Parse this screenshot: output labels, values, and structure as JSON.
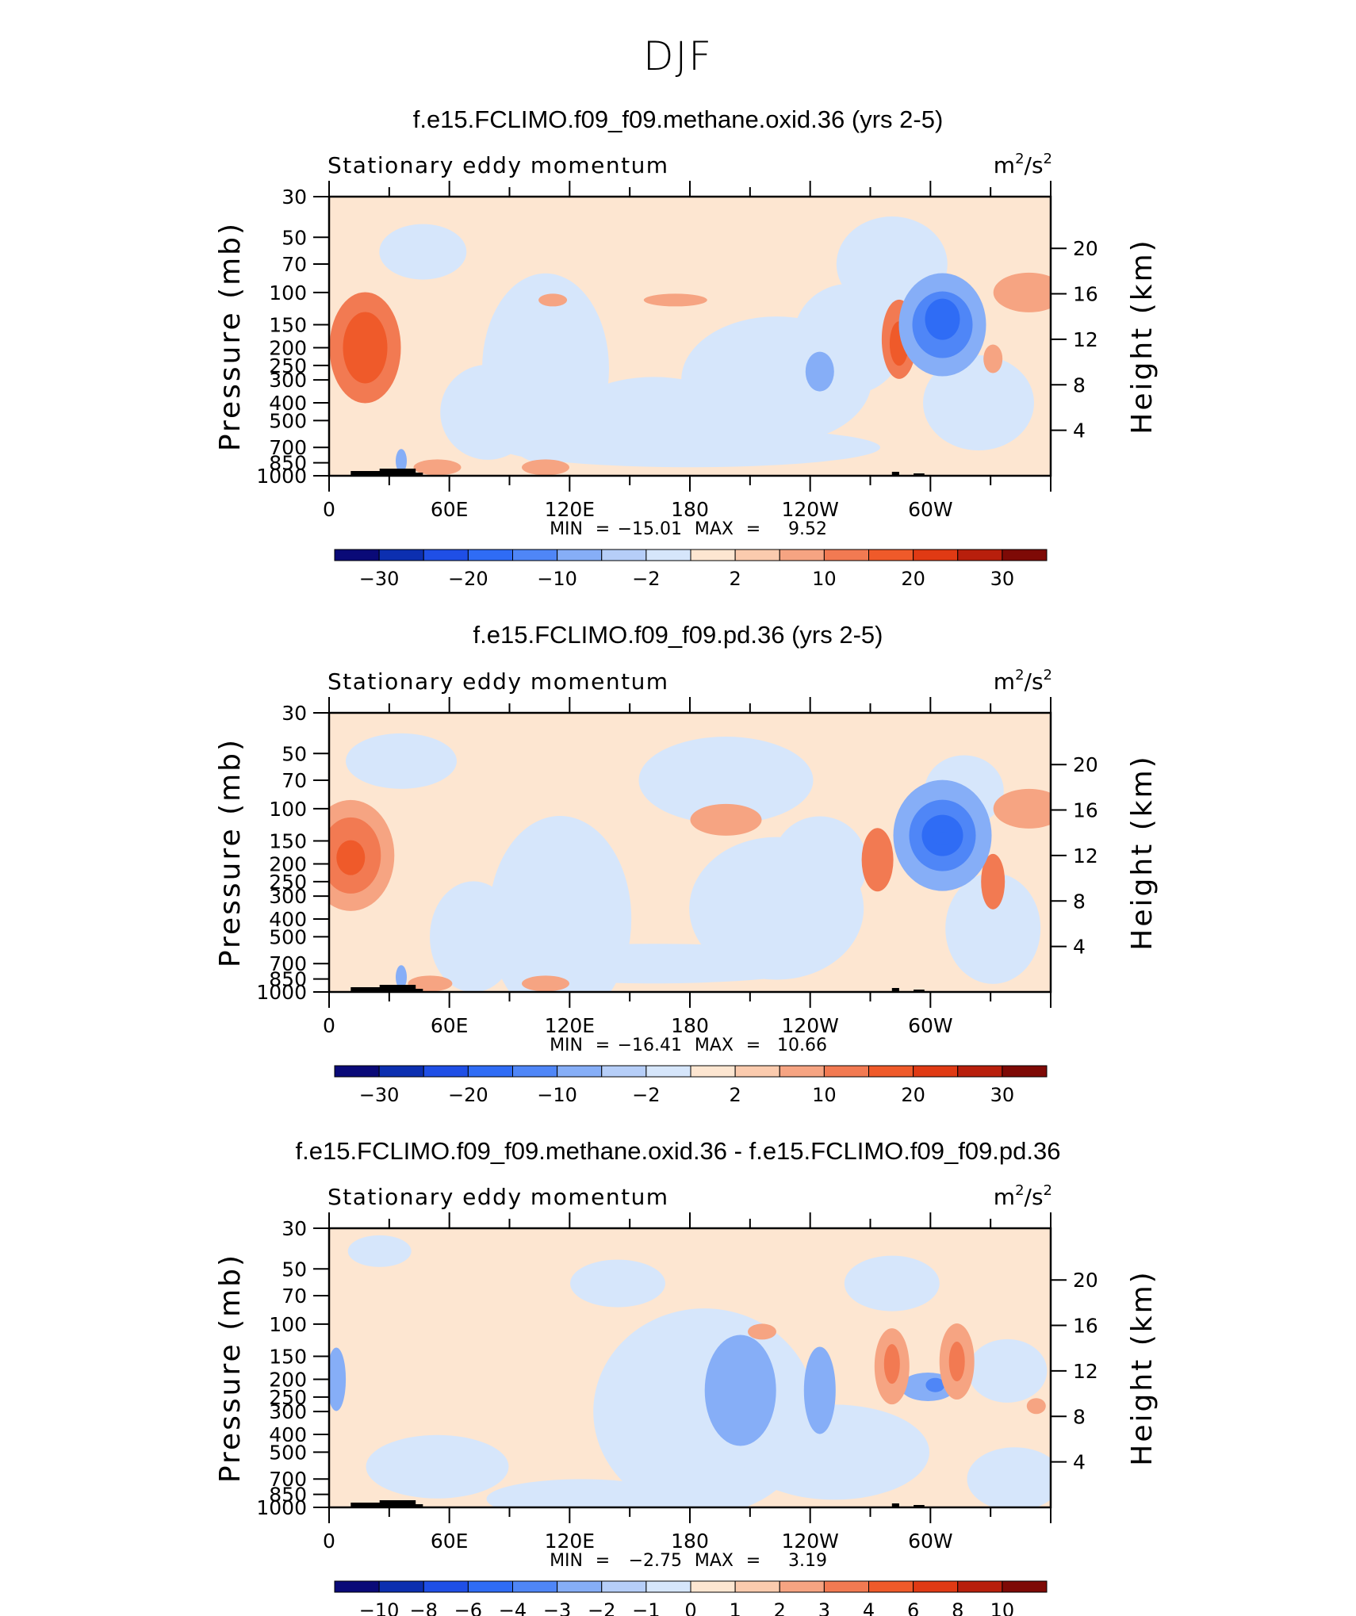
{
  "main_title": "DJF",
  "chart_data": [
    {
      "type": "contour",
      "title": "f.e15.FCLIMO.f09_f09.methane.oxid.36 (yrs 2-5)",
      "subtitle": "Stationary eddy momentum",
      "units": "m²/s²",
      "units_base": "m",
      "units_sup": "2",
      "units_mid": "/s",
      "ylabel": "Pressure (mb)",
      "y2label": "Height (km)",
      "pressure_ticks": [
        "30",
        "50",
        "70",
        "100",
        "150",
        "200",
        "250",
        "300",
        "400",
        "500",
        "700",
        "850",
        "1000"
      ],
      "height_ticks": [
        "20",
        "16",
        "12",
        "8",
        "4"
      ],
      "x_ticks": [
        "0",
        "60E",
        "120E",
        "180",
        "120W",
        "60W"
      ],
      "stats_min_label": "MIN",
      "stats_max_label": "MAX",
      "min": "−15.01",
      "max": "9.52",
      "colorbar_labels": [
        "−30",
        "−20",
        "−10",
        "−2",
        "2",
        "10",
        "20",
        "30"
      ],
      "colorbar_levels": [
        -35,
        -30,
        -25,
        -20,
        -15,
        -10,
        -5,
        -2,
        0,
        2,
        5,
        10,
        15,
        20,
        25,
        30,
        35
      ]
    },
    {
      "type": "contour",
      "title": "f.e15.FCLIMO.f09_f09.pd.36 (yrs 2-5)",
      "subtitle": "Stationary eddy momentum",
      "units": "m²/s²",
      "units_base": "m",
      "units_sup": "2",
      "units_mid": "/s",
      "ylabel": "Pressure (mb)",
      "y2label": "Height (km)",
      "pressure_ticks": [
        "30",
        "50",
        "70",
        "100",
        "150",
        "200",
        "250",
        "300",
        "400",
        "500",
        "700",
        "850",
        "1000"
      ],
      "height_ticks": [
        "20",
        "16",
        "12",
        "8",
        "4"
      ],
      "x_ticks": [
        "0",
        "60E",
        "120E",
        "180",
        "120W",
        "60W"
      ],
      "stats_min_label": "MIN",
      "stats_max_label": "MAX",
      "min": "−16.41",
      "max": "10.66",
      "colorbar_labels": [
        "−30",
        "−20",
        "−10",
        "−2",
        "2",
        "10",
        "20",
        "30"
      ],
      "colorbar_levels": [
        -35,
        -30,
        -25,
        -20,
        -15,
        -10,
        -5,
        -2,
        0,
        2,
        5,
        10,
        15,
        20,
        25,
        30,
        35
      ]
    },
    {
      "type": "contour",
      "title": "f.e15.FCLIMO.f09_f09.methane.oxid.36 - f.e15.FCLIMO.f09_f09.pd.36",
      "subtitle": "Stationary eddy momentum",
      "units": "m²/s²",
      "units_base": "m",
      "units_sup": "2",
      "units_mid": "/s",
      "ylabel": "Pressure (mb)",
      "y2label": "Height (km)",
      "pressure_ticks": [
        "30",
        "50",
        "70",
        "100",
        "150",
        "200",
        "250",
        "300",
        "400",
        "500",
        "700",
        "850",
        "1000"
      ],
      "height_ticks": [
        "20",
        "16",
        "12",
        "8",
        "4"
      ],
      "x_ticks": [
        "0",
        "60E",
        "120E",
        "180",
        "120W",
        "60W"
      ],
      "stats_min_label": "MIN",
      "stats_max_label": "MAX",
      "min": "−2.75",
      "max": "3.19",
      "colorbar_labels": [
        "−10",
        "−8",
        "−6",
        "−4",
        "−3",
        "−2",
        "−1",
        "0",
        "1",
        "2",
        "3",
        "4",
        "6",
        "8",
        "10"
      ],
      "colorbar_levels": [
        -12,
        -10,
        -8,
        -6,
        -4,
        -3,
        -2,
        -1,
        0,
        1,
        2,
        3,
        4,
        6,
        8,
        10,
        12
      ]
    }
  ],
  "colors": {
    "colorbar": [
      "#0a0a78",
      "#0c2fb0",
      "#1f4fe6",
      "#2f6cf5",
      "#4f86f7",
      "#86aef7",
      "#b6cef8",
      "#d6e6fb",
      "#fde6d1",
      "#fbcbae",
      "#f6a482",
      "#f27a52",
      "#ef5a2a",
      "#e03a14",
      "#b81f0c",
      "#7e0a06"
    ],
    "neg_light": "#d6e6fb",
    "pos_light": "#fde6d1",
    "topography": "#000000"
  }
}
